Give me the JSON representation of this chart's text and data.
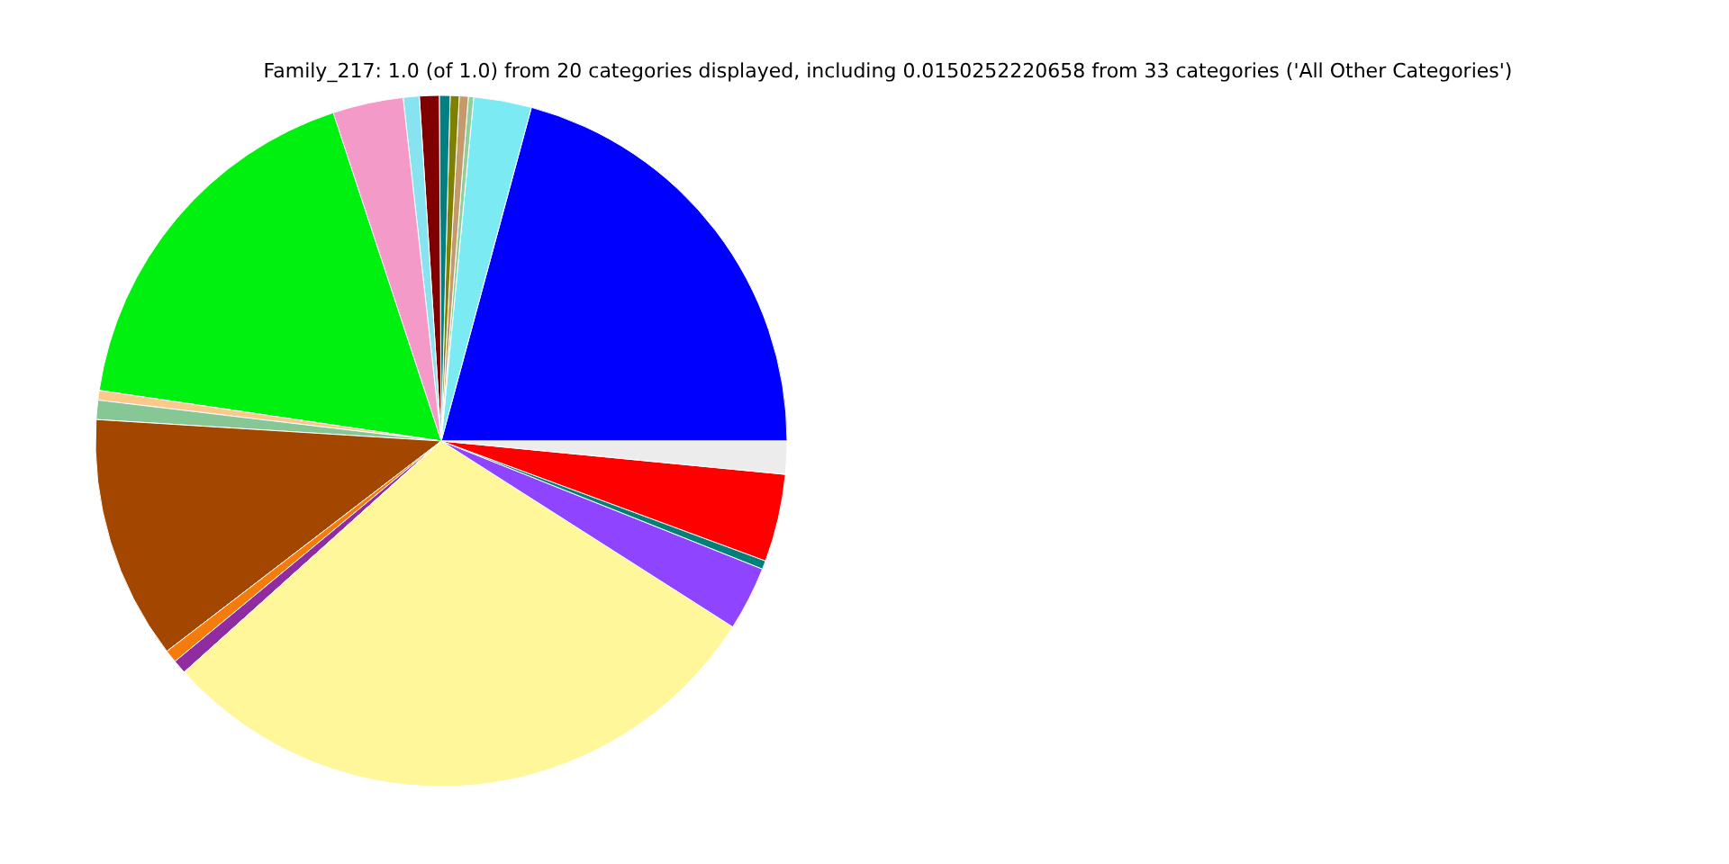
{
  "chart_data": {
    "type": "pie",
    "title": "Family_217: 1.0 (of 1.0) from 20 categories displayed, including 0.0150252220658 from 33 categories ('All Other Categories')",
    "categories": [
      null,
      null,
      null,
      null,
      null,
      null,
      null,
      null,
      null,
      null,
      null,
      null,
      null,
      null,
      null,
      null,
      null,
      null,
      null,
      null
    ],
    "values": [
      20.8,
      2.7,
      0.25,
      0.42,
      0.42,
      0.5,
      0.92,
      0.75,
      3.3,
      17.6,
      0.45,
      0.9,
      11.4,
      0.6,
      0.65,
      29.3,
      3.0,
      0.4,
      4.1,
      1.54
    ],
    "colors": [
      "#0000ff",
      "#7beaf2",
      "#8fcf9e",
      "#c49a6c",
      "#808000",
      "#008080",
      "#800000",
      "#86e3ef",
      "#f49ac8",
      "#00f00f",
      "#fcc98a",
      "#86c795",
      "#a34600",
      "#f57c0a",
      "#902ba0",
      "#fff799",
      "#8f45ff",
      "#008078",
      "#ff0000",
      "#ececec"
    ],
    "legend": false
  }
}
